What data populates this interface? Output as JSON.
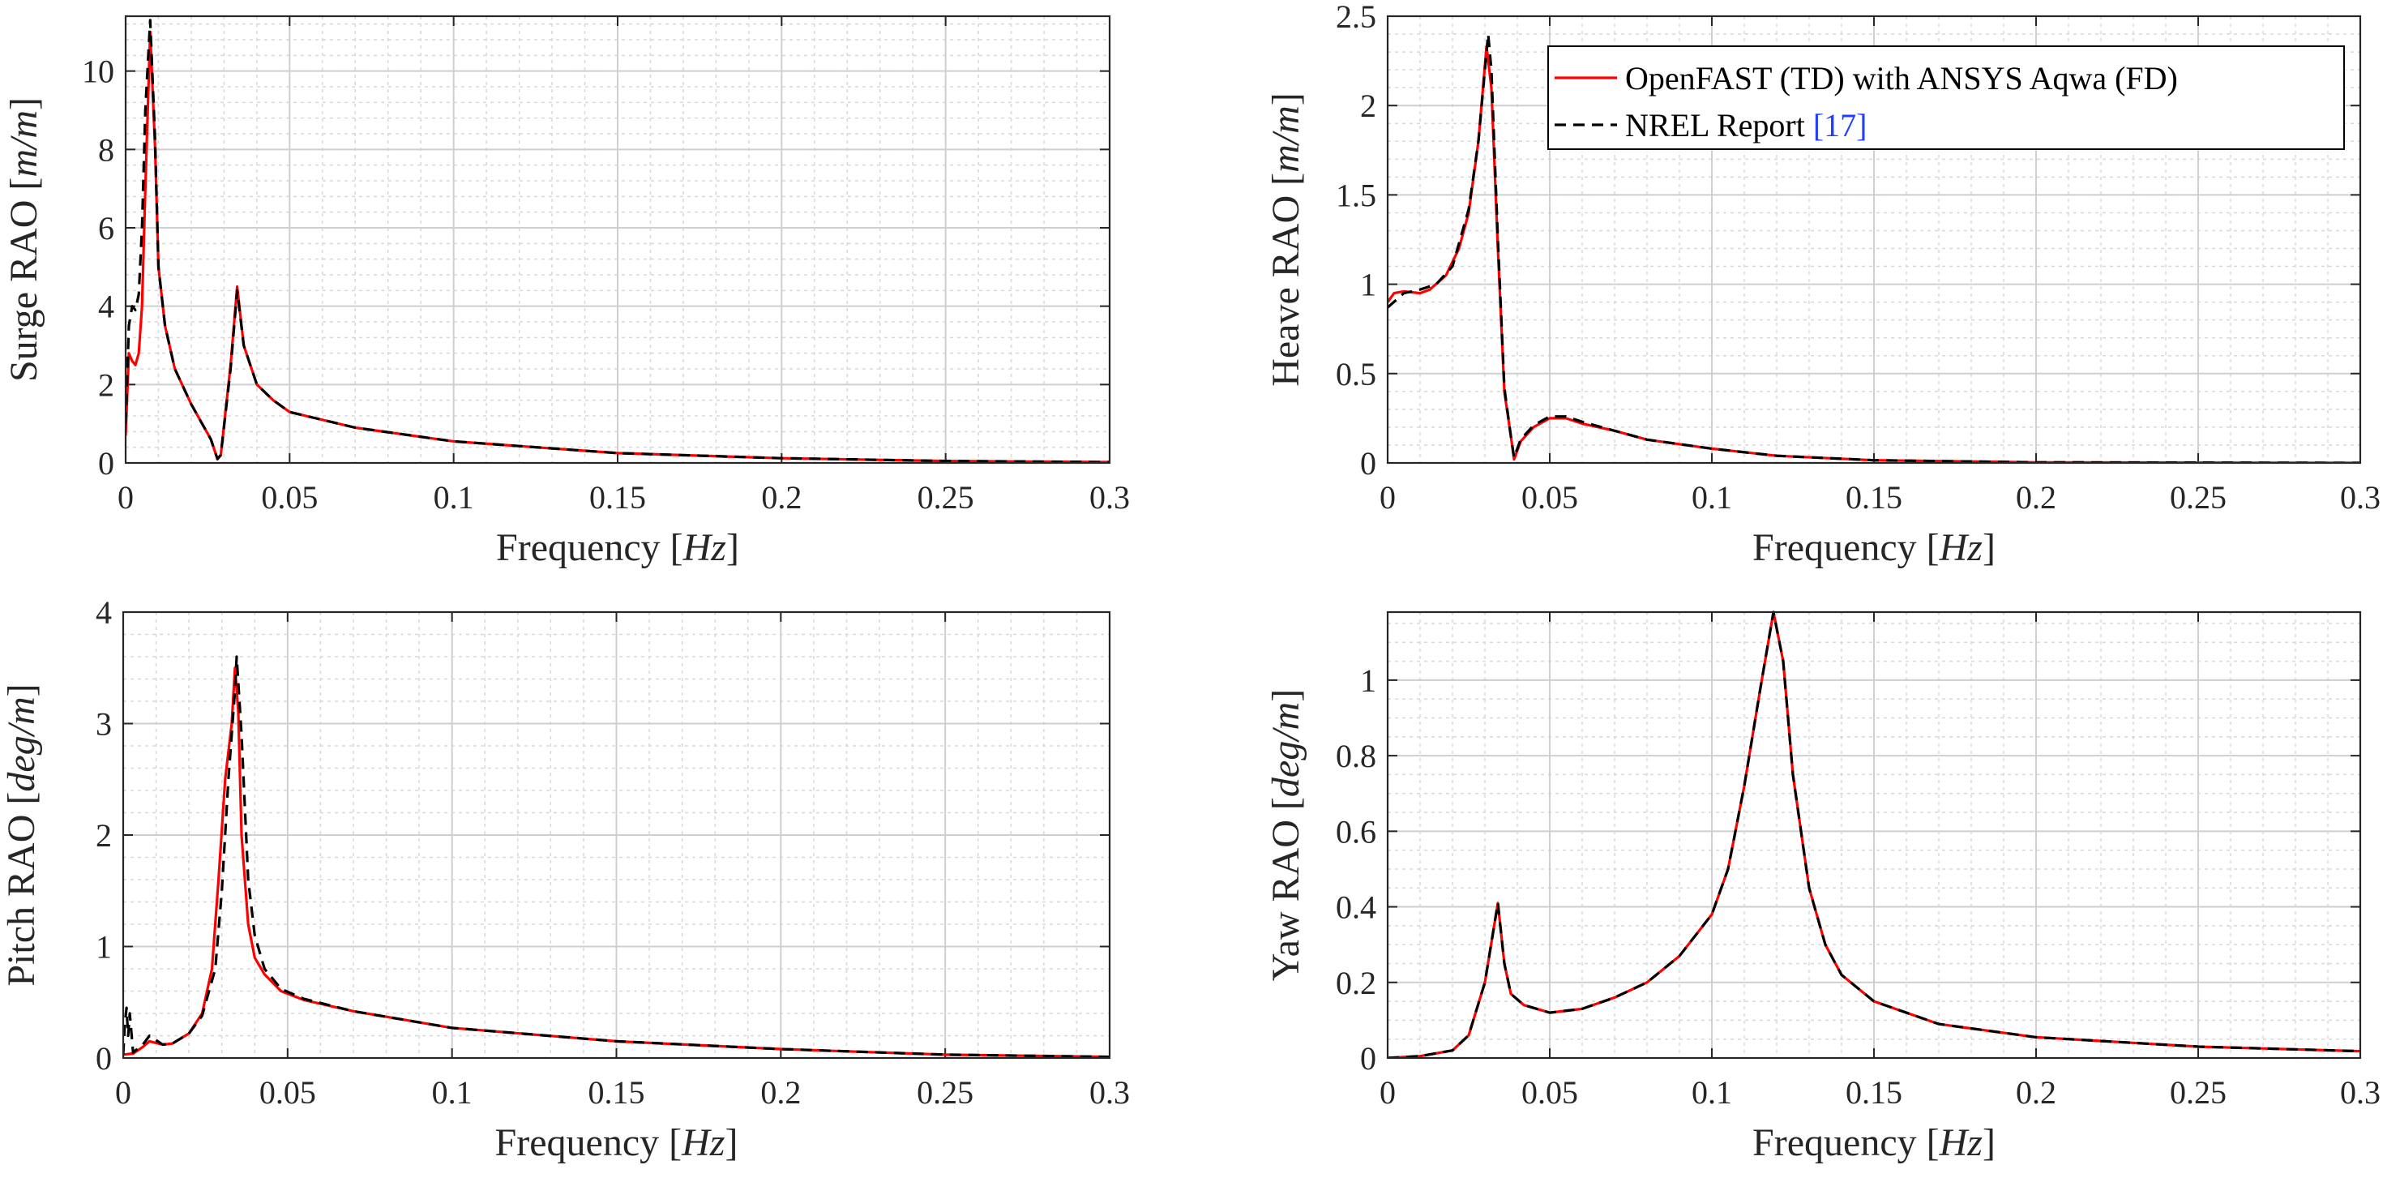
{
  "legend": {
    "entries": [
      {
        "label": "OpenFAST (TD) with ANSYS Aqwa (FD)",
        "color": "#ff0000",
        "dash": "solid"
      },
      {
        "label": "NREL Report ",
        "ref": "[17]",
        "ref_color": "#1f3fff",
        "color": "#000000",
        "dash": "dashed"
      }
    ],
    "placement": "top-right of Heave panel"
  },
  "chart_data": [
    {
      "type": "line",
      "id": "surge",
      "xlabel": "Frequency",
      "xunit": "Hz",
      "ylabel": "Surge RAO",
      "yunit": "m/m",
      "xlim": [
        0,
        0.3
      ],
      "ylim": [
        0,
        11.4
      ],
      "grid": true,
      "xticks": [
        0,
        0.05,
        0.1,
        0.15,
        0.2,
        0.25,
        0.3
      ],
      "yticks": [
        0,
        2,
        4,
        6,
        8,
        10
      ],
      "xminor": 0.01,
      "yminor": 0.4,
      "series": [
        {
          "name": "OpenFAST (TD) with ANSYS Aqwa (FD)",
          "points": [
            [
              0,
              0.7
            ],
            [
              0.001,
              2.8
            ],
            [
              0.002,
              2.6
            ],
            [
              0.003,
              2.5
            ],
            [
              0.004,
              2.8
            ],
            [
              0.005,
              4
            ],
            [
              0.006,
              7
            ],
            [
              0.0075,
              11
            ],
            [
              0.009,
              8
            ],
            [
              0.01,
              5
            ],
            [
              0.012,
              3.5
            ],
            [
              0.015,
              2.4
            ],
            [
              0.02,
              1.5
            ],
            [
              0.024,
              0.9
            ],
            [
              0.026,
              0.6
            ],
            [
              0.028,
              0.1
            ],
            [
              0.029,
              0.2
            ],
            [
              0.032,
              2.5
            ],
            [
              0.034,
              4.5
            ],
            [
              0.036,
              3
            ],
            [
              0.04,
              2
            ],
            [
              0.045,
              1.6
            ],
            [
              0.05,
              1.3
            ],
            [
              0.07,
              0.9
            ],
            [
              0.1,
              0.55
            ],
            [
              0.15,
              0.25
            ],
            [
              0.2,
              0.12
            ],
            [
              0.25,
              0.05
            ],
            [
              0.3,
              0.02
            ]
          ]
        },
        {
          "name": "NREL Report [17]",
          "points": [
            [
              0,
              1
            ],
            [
              0.001,
              3.5
            ],
            [
              0.002,
              4
            ],
            [
              0.003,
              3.9
            ],
            [
              0.004,
              4.3
            ],
            [
              0.005,
              6
            ],
            [
              0.006,
              9
            ],
            [
              0.0075,
              11.3
            ],
            [
              0.009,
              8.2
            ],
            [
              0.01,
              5
            ],
            [
              0.012,
              3.5
            ],
            [
              0.015,
              2.4
            ],
            [
              0.02,
              1.5
            ],
            [
              0.024,
              0.9
            ],
            [
              0.026,
              0.6
            ],
            [
              0.028,
              0.1
            ],
            [
              0.029,
              0.2
            ],
            [
              0.032,
              2.4
            ],
            [
              0.034,
              4.4
            ],
            [
              0.036,
              3
            ],
            [
              0.04,
              2
            ],
            [
              0.045,
              1.6
            ],
            [
              0.05,
              1.3
            ],
            [
              0.07,
              0.9
            ],
            [
              0.1,
              0.55
            ],
            [
              0.15,
              0.25
            ],
            [
              0.2,
              0.12
            ],
            [
              0.25,
              0.05
            ],
            [
              0.3,
              0.02
            ]
          ]
        }
      ]
    },
    {
      "type": "line",
      "id": "heave",
      "xlabel": "Frequency",
      "xunit": "Hz",
      "ylabel": "Heave RAO",
      "yunit": "m/m",
      "xlim": [
        0,
        0.3
      ],
      "ylim": [
        0,
        2.5
      ],
      "grid": true,
      "xticks": [
        0,
        0.05,
        0.1,
        0.15,
        0.2,
        0.25,
        0.3
      ],
      "yticks": [
        0,
        0.5,
        1,
        1.5,
        2,
        2.5
      ],
      "xminor": 0.01,
      "yminor": 0.1,
      "series": [
        {
          "name": "OpenFAST (TD) with ANSYS Aqwa (FD)",
          "points": [
            [
              0,
              0.9
            ],
            [
              0.002,
              0.95
            ],
            [
              0.005,
              0.96
            ],
            [
              0.01,
              0.95
            ],
            [
              0.013,
              0.97
            ],
            [
              0.018,
              1.05
            ],
            [
              0.022,
              1.2
            ],
            [
              0.025,
              1.4
            ],
            [
              0.028,
              1.8
            ],
            [
              0.0305,
              2.33
            ],
            [
              0.032,
              2.1
            ],
            [
              0.034,
              1.2
            ],
            [
              0.036,
              0.4
            ],
            [
              0.038,
              0.15
            ],
            [
              0.039,
              0.02
            ],
            [
              0.041,
              0.12
            ],
            [
              0.045,
              0.2
            ],
            [
              0.05,
              0.25
            ],
            [
              0.055,
              0.25
            ],
            [
              0.06,
              0.22
            ],
            [
              0.07,
              0.18
            ],
            [
              0.08,
              0.13
            ],
            [
              0.1,
              0.08
            ],
            [
              0.12,
              0.04
            ],
            [
              0.15,
              0.015
            ],
            [
              0.2,
              0.003
            ],
            [
              0.3,
              0
            ]
          ]
        },
        {
          "name": "NREL Report [17]",
          "points": [
            [
              0,
              0.87
            ],
            [
              0.005,
              0.95
            ],
            [
              0.01,
              0.97
            ],
            [
              0.015,
              1.0
            ],
            [
              0.02,
              1.1
            ],
            [
              0.025,
              1.42
            ],
            [
              0.028,
              1.8
            ],
            [
              0.031,
              2.4
            ],
            [
              0.032,
              2.2
            ],
            [
              0.034,
              1.25
            ],
            [
              0.036,
              0.42
            ],
            [
              0.038,
              0.15
            ],
            [
              0.039,
              0.03
            ],
            [
              0.041,
              0.13
            ],
            [
              0.045,
              0.21
            ],
            [
              0.05,
              0.26
            ],
            [
              0.055,
              0.26
            ],
            [
              0.06,
              0.23
            ],
            [
              0.07,
              0.18
            ],
            [
              0.08,
              0.13
            ],
            [
              0.1,
              0.08
            ],
            [
              0.12,
              0.04
            ],
            [
              0.15,
              0.015
            ],
            [
              0.2,
              0.003
            ],
            [
              0.3,
              0
            ]
          ]
        }
      ]
    },
    {
      "type": "line",
      "id": "pitch",
      "xlabel": "Frequency",
      "xunit": "Hz",
      "ylabel": "Pitch RAO",
      "yunit": "deg/m",
      "xlim": [
        0,
        0.3
      ],
      "ylim": [
        0,
        4
      ],
      "grid": true,
      "xticks": [
        0,
        0.05,
        0.1,
        0.15,
        0.2,
        0.25,
        0.3
      ],
      "yticks": [
        0,
        1,
        2,
        3,
        4
      ],
      "xminor": 0.01,
      "yminor": 0.2,
      "series": [
        {
          "name": "OpenFAST (TD) with ANSYS Aqwa (FD)",
          "points": [
            [
              0,
              0.03
            ],
            [
              0.003,
              0.04
            ],
            [
              0.006,
              0.1
            ],
            [
              0.008,
              0.15
            ],
            [
              0.012,
              0.12
            ],
            [
              0.015,
              0.13
            ],
            [
              0.02,
              0.22
            ],
            [
              0.024,
              0.4
            ],
            [
              0.027,
              0.8
            ],
            [
              0.029,
              1.6
            ],
            [
              0.031,
              2.5
            ],
            [
              0.033,
              3.0
            ],
            [
              0.034,
              3.5
            ],
            [
              0.035,
              3.1
            ],
            [
              0.036,
              2.0
            ],
            [
              0.038,
              1.2
            ],
            [
              0.04,
              0.9
            ],
            [
              0.043,
              0.75
            ],
            [
              0.048,
              0.6
            ],
            [
              0.055,
              0.52
            ],
            [
              0.07,
              0.42
            ],
            [
              0.1,
              0.27
            ],
            [
              0.15,
              0.15
            ],
            [
              0.2,
              0.08
            ],
            [
              0.25,
              0.03
            ],
            [
              0.3,
              0.01
            ]
          ]
        },
        {
          "name": "NREL Report [17]",
          "points": [
            [
              0,
              0.03
            ],
            [
              0.0005,
              0.3
            ],
            [
              0.001,
              0.45
            ],
            [
              0.0015,
              0.2
            ],
            [
              0.002,
              0.4
            ],
            [
              0.003,
              0.05
            ],
            [
              0.006,
              0.12
            ],
            [
              0.008,
              0.2
            ],
            [
              0.012,
              0.12
            ],
            [
              0.015,
              0.13
            ],
            [
              0.02,
              0.22
            ],
            [
              0.024,
              0.38
            ],
            [
              0.028,
              0.8
            ],
            [
              0.03,
              1.5
            ],
            [
              0.032,
              2.5
            ],
            [
              0.034,
              3.3
            ],
            [
              0.0345,
              3.6
            ],
            [
              0.036,
              2.9
            ],
            [
              0.038,
              1.6
            ],
            [
              0.04,
              1.1
            ],
            [
              0.043,
              0.8
            ],
            [
              0.048,
              0.62
            ],
            [
              0.055,
              0.53
            ],
            [
              0.07,
              0.42
            ],
            [
              0.1,
              0.27
            ],
            [
              0.15,
              0.15
            ],
            [
              0.2,
              0.08
            ],
            [
              0.25,
              0.03
            ],
            [
              0.3,
              0.01
            ]
          ]
        }
      ]
    },
    {
      "type": "line",
      "id": "yaw",
      "xlabel": "Frequency",
      "xunit": "Hz",
      "ylabel": "Yaw RAO",
      "yunit": "deg/m",
      "xlim": [
        0,
        0.3
      ],
      "ylim": [
        0,
        1.18
      ],
      "grid": true,
      "xticks": [
        0,
        0.05,
        0.1,
        0.15,
        0.2,
        0.25,
        0.3
      ],
      "yticks": [
        0,
        0.2,
        0.4,
        0.6,
        0.8,
        1
      ],
      "xminor": 0.01,
      "yminor": 0.05,
      "series": [
        {
          "name": "OpenFAST (TD) with ANSYS Aqwa (FD)",
          "points": [
            [
              0,
              0
            ],
            [
              0.01,
              0.005
            ],
            [
              0.02,
              0.02
            ],
            [
              0.025,
              0.06
            ],
            [
              0.03,
              0.2
            ],
            [
              0.034,
              0.41
            ],
            [
              0.036,
              0.25
            ],
            [
              0.038,
              0.17
            ],
            [
              0.042,
              0.14
            ],
            [
              0.05,
              0.12
            ],
            [
              0.06,
              0.13
            ],
            [
              0.07,
              0.16
            ],
            [
              0.08,
              0.2
            ],
            [
              0.09,
              0.27
            ],
            [
              0.1,
              0.38
            ],
            [
              0.105,
              0.5
            ],
            [
              0.11,
              0.72
            ],
            [
              0.115,
              0.98
            ],
            [
              0.119,
              1.18
            ],
            [
              0.122,
              1.05
            ],
            [
              0.125,
              0.75
            ],
            [
              0.13,
              0.45
            ],
            [
              0.135,
              0.3
            ],
            [
              0.14,
              0.22
            ],
            [
              0.15,
              0.15
            ],
            [
              0.17,
              0.09
            ],
            [
              0.2,
              0.055
            ],
            [
              0.25,
              0.03
            ],
            [
              0.3,
              0.018
            ]
          ]
        },
        {
          "name": "NREL Report [17]",
          "points": [
            [
              0,
              0
            ],
            [
              0.01,
              0.005
            ],
            [
              0.02,
              0.02
            ],
            [
              0.025,
              0.06
            ],
            [
              0.03,
              0.2
            ],
            [
              0.034,
              0.41
            ],
            [
              0.036,
              0.25
            ],
            [
              0.038,
              0.17
            ],
            [
              0.042,
              0.14
            ],
            [
              0.05,
              0.12
            ],
            [
              0.06,
              0.13
            ],
            [
              0.07,
              0.16
            ],
            [
              0.08,
              0.2
            ],
            [
              0.09,
              0.27
            ],
            [
              0.1,
              0.38
            ],
            [
              0.105,
              0.5
            ],
            [
              0.11,
              0.72
            ],
            [
              0.115,
              0.98
            ],
            [
              0.119,
              1.18
            ],
            [
              0.122,
              1.05
            ],
            [
              0.125,
              0.75
            ],
            [
              0.13,
              0.45
            ],
            [
              0.135,
              0.3
            ],
            [
              0.14,
              0.22
            ],
            [
              0.15,
              0.15
            ],
            [
              0.17,
              0.09
            ],
            [
              0.2,
              0.055
            ],
            [
              0.25,
              0.03
            ],
            [
              0.3,
              0.018
            ]
          ]
        }
      ]
    }
  ]
}
